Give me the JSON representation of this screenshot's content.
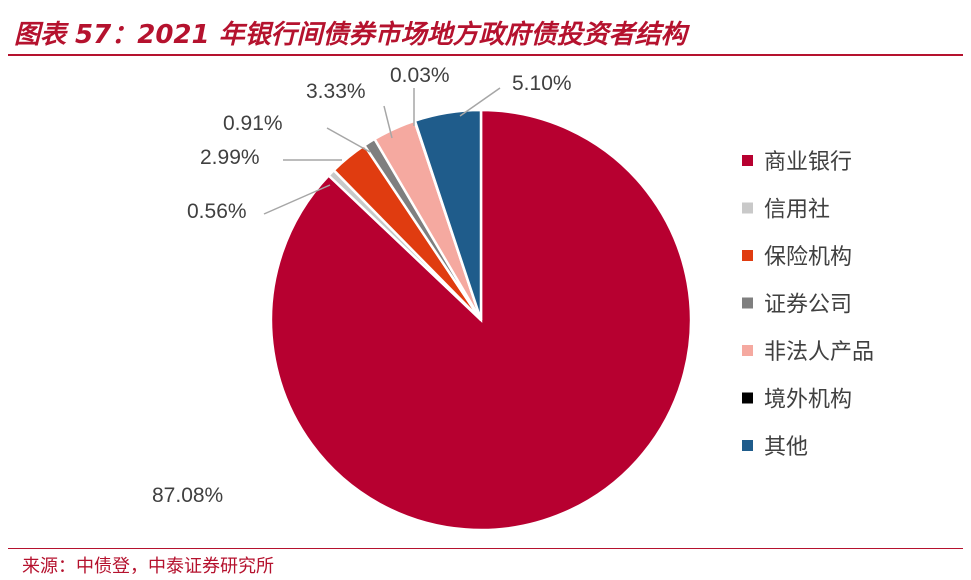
{
  "title": "图表 57：2021 年银行间债券市场地方政府债投资者结构",
  "source": "来源：中债登，中泰证券研究所",
  "chart_data": {
    "type": "pie",
    "title": "",
    "legend_position": "right",
    "slices": [
      {
        "name": "商业银行",
        "value": 87.08,
        "label": "87.08%",
        "color": "#b70030"
      },
      {
        "name": "信用社",
        "value": 0.56,
        "label": "0.56%",
        "color": "#c9c9c9"
      },
      {
        "name": "保险机构",
        "value": 2.99,
        "label": "2.99%",
        "color": "#e03c10"
      },
      {
        "name": "证券公司",
        "value": 0.91,
        "label": "0.91%",
        "color": "#7f7f7f"
      },
      {
        "name": "非法人产品",
        "value": 3.33,
        "label": "3.33%",
        "color": "#f5a9a0"
      },
      {
        "name": "境外机构",
        "value": 0.03,
        "label": "0.03%",
        "color": "#000000"
      },
      {
        "name": "其他",
        "value": 5.1,
        "label": "5.10%",
        "color": "#1f5c8b"
      }
    ]
  }
}
